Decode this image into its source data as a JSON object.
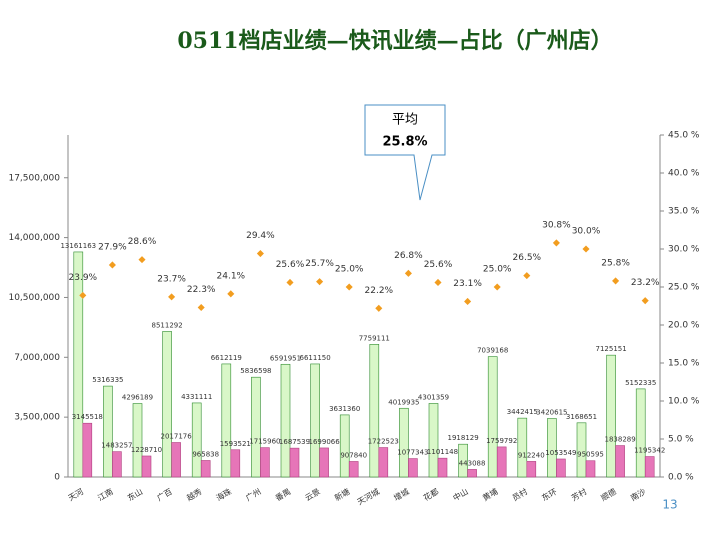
{
  "chart_data": {
    "type": "bar_line",
    "title": "0511档店业绩—快讯业绩—占比（广州店）",
    "annotation": {
      "label": "平均",
      "value": "25.8%"
    },
    "page_number": "13",
    "categories": [
      "天河",
      "江南",
      "东山",
      "广百",
      "越秀",
      "海珠",
      "广州",
      "番禺",
      "云景",
      "新塘",
      "天河城",
      "增城",
      "花都",
      "中山",
      "黄埔",
      "员村",
      "东环",
      "芳村",
      "顺德",
      "南沙"
    ],
    "series": [
      {
        "color": "#d9f7c8",
        "stroke": "#2e8b2e",
        "kind": "bar",
        "values": [
          13161163,
          5316335,
          4296189,
          8511292,
          4331111,
          6612119,
          5836598,
          6591951,
          6611150,
          3631360,
          7759111,
          4019935,
          4301359,
          1918129,
          7039168,
          3442415,
          3420615,
          3168651,
          7125151,
          5152335
        ]
      },
      {
        "color": "#e675b8",
        "stroke": "#b0407f",
        "kind": "bar",
        "values": [
          3145518,
          1483257,
          1228710,
          2017176,
          965838,
          1593521,
          1715960,
          1687539,
          1699066,
          907840,
          1722523,
          1077343,
          1101148,
          443088,
          1759792,
          912240,
          1053549,
          950595,
          1838289,
          1195342
        ]
      },
      {
        "color": "#f29d1f",
        "kind": "point",
        "axis": "y2",
        "values": [
          23.9,
          27.9,
          28.6,
          23.7,
          22.3,
          24.1,
          29.4,
          25.6,
          25.7,
          25.0,
          22.2,
          26.8,
          25.6,
          23.1,
          25.0,
          26.5,
          30.8,
          30.0,
          25.8,
          23.2
        ],
        "value_labels": [
          "23.9%",
          "27.9%",
          "28.6%",
          "23.7%",
          "22.3%",
          "24.1%",
          "29.4%",
          "25.6%",
          "25.7%",
          "25.0%",
          "22.2%",
          "26.8%",
          "25.6%",
          "23.1%",
          "25.0%",
          "26.5%",
          "30.8%",
          "30.0%",
          "25.8%",
          "23.2%"
        ]
      }
    ],
    "ylim": [
      0,
      20000000
    ],
    "yticks": [
      0,
      {
        "value": 3500000,
        "label": "3,500,000"
      },
      {
        "value": 7000000,
        "label": "7,000,000"
      },
      {
        "value": 10500000,
        "label": "10,500,000"
      },
      {
        "value": 14000000,
        "label": "14,000,000"
      },
      {
        "value": 17500000,
        "label": "17,500,000"
      }
    ],
    "y2lim": [
      0,
      45
    ],
    "y2ticks": [
      {
        "value": 0,
        "label": "0.0 %"
      },
      {
        "value": 5,
        "label": "5.0 %"
      },
      {
        "value": 10,
        "label": "10.0 %"
      },
      {
        "value": 15,
        "label": "15.0 %"
      },
      {
        "value": 20,
        "label": "20.0 %"
      },
      {
        "value": 25,
        "label": "25.0 %"
      },
      {
        "value": 30,
        "label": "30.0 %"
      },
      {
        "value": 35,
        "label": "35.0 %"
      },
      {
        "value": 40,
        "label": "40.0 %"
      },
      {
        "value": 45,
        "label": "45.0 %"
      }
    ]
  }
}
